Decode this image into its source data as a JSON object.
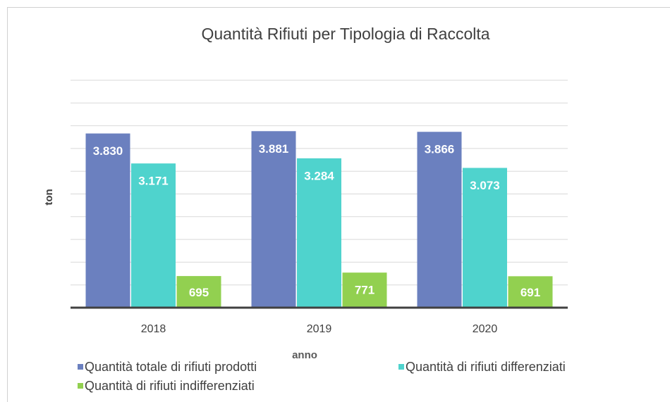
{
  "chart_data": {
    "type": "bar",
    "title": "Quantità Rifiuti per Tipologia di Raccolta",
    "x_label": "anno",
    "y_label": "ton",
    "categories": [
      "2018",
      "2019",
      "2020"
    ],
    "series": [
      {
        "name": "Quantità totale di rifiuti prodotti",
        "color": "#6b80bf",
        "values": [
          3830,
          3881,
          3866
        ],
        "value_labels": [
          "3.830",
          "3.881",
          "3.866"
        ]
      },
      {
        "name": "Quantità di rifiuti differenziati",
        "color": "#4fd3cd",
        "values": [
          3171,
          3284,
          3073
        ],
        "value_labels": [
          "3.171",
          "3.284",
          "3.073"
        ]
      },
      {
        "name": "Quantità di rifiuti indifferenziati",
        "color": "#92d050",
        "values": [
          695,
          771,
          691
        ],
        "value_labels": [
          "695",
          "771",
          "691"
        ]
      }
    ],
    "ylim": [
      0,
      5000
    ],
    "yticks": [
      0,
      500,
      1000,
      1500,
      2000,
      2500,
      3000,
      3500,
      4000,
      4500,
      5000
    ],
    "grid": true
  }
}
